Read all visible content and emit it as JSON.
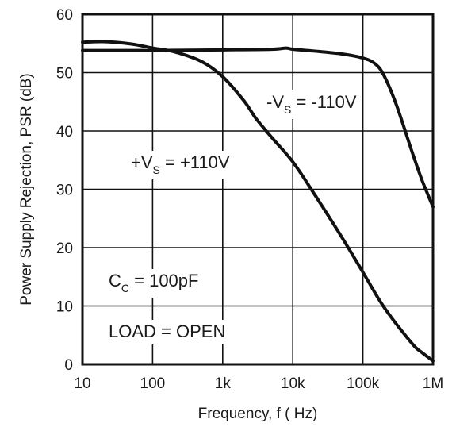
{
  "chart_data": {
    "type": "line",
    "xscale": "log",
    "xlim": [
      10,
      1000000
    ],
    "ylim": [
      0,
      60
    ],
    "xlabel": "Frequency, f ( Hz)",
    "ylabel": "Power Supply Rejection, PSR (dB)",
    "grid": true,
    "x_ticks": [
      10,
      100,
      1000,
      10000,
      100000,
      1000000
    ],
    "x_tick_labels": [
      "10",
      "100",
      "1k",
      "10k",
      "100k",
      "1M"
    ],
    "y_ticks": [
      0,
      10,
      20,
      30,
      40,
      50,
      60
    ],
    "y_tick_labels": [
      "0",
      "10",
      "20",
      "30",
      "40",
      "50",
      "60"
    ],
    "series": [
      {
        "name": "-VS = -110V",
        "color": "#111111",
        "x": [
          10,
          100,
          1000,
          5000,
          8000,
          10000,
          20000,
          50000,
          100000,
          150000,
          200000,
          300000,
          500000,
          700000,
          1000000
        ],
        "y": [
          53.8,
          53.8,
          53.9,
          54.0,
          54.2,
          54.0,
          53.7,
          53.2,
          52.5,
          51.5,
          49.5,
          44.5,
          36.5,
          31.5,
          27.0
        ]
      },
      {
        "name": "+VS = +110V",
        "color": "#111111",
        "x": [
          10,
          20,
          50,
          100,
          200,
          500,
          1000,
          2000,
          3000,
          5000,
          10000,
          20000,
          50000,
          100000,
          200000,
          500000,
          700000,
          1000000
        ],
        "y": [
          55.2,
          55.3,
          54.9,
          54.2,
          53.6,
          51.9,
          49.3,
          45.2,
          42.1,
          38.9,
          34.7,
          29.3,
          21.8,
          15.8,
          9.8,
          3.6,
          2.0,
          0.6
        ]
      }
    ],
    "annotations": [
      {
        "id": "neg",
        "main": "-V",
        "sub": "S",
        "rest": " = -110V"
      },
      {
        "id": "pos",
        "main": "+V",
        "sub": "S",
        "rest": " = +110V"
      },
      {
        "id": "cc",
        "main": "C",
        "sub": "C",
        "rest": " = 100pF"
      },
      {
        "id": "load",
        "main": "LOAD = OPEN",
        "sub": "",
        "rest": ""
      }
    ]
  }
}
